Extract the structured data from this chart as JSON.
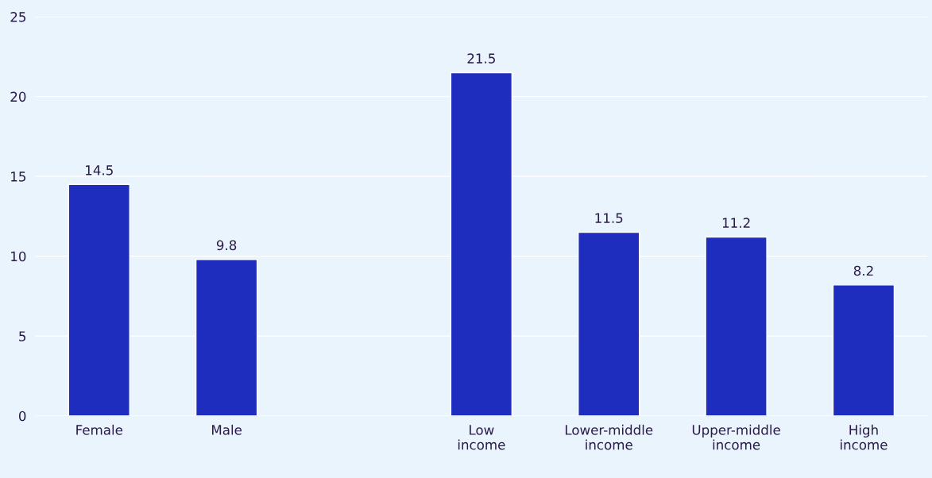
{
  "chart_data": {
    "type": "bar",
    "categories": [
      "Female",
      "Male",
      null,
      "Low\nincome",
      "Lower-middle\nincome",
      "Upper-middle\nincome",
      "High\nincome"
    ],
    "values": [
      14.5,
      9.8,
      null,
      21.5,
      11.5,
      11.2,
      8.2
    ],
    "color": "#1f2dbf",
    "ylim": [
      0,
      25
    ],
    "yticks": [
      0,
      5,
      10,
      15,
      20,
      25
    ],
    "grid": "y",
    "data_labels": true,
    "legend": false
  }
}
